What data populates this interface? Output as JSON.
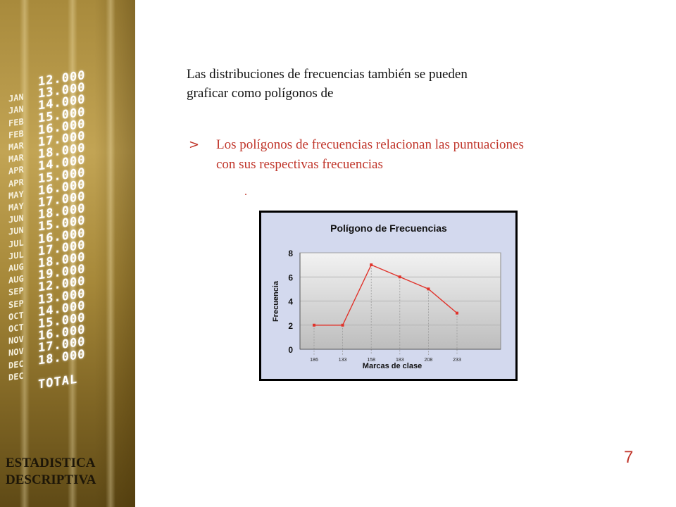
{
  "slide": {
    "intro_lines": [
      "Las distribuciones de frecuencias también se pueden",
      "graficar como polígonos de"
    ],
    "bullet_marker": ">",
    "bullet_lines": [
      "Los polígonos de frecuencias relacionan las puntuaciones",
      "con sus respectivas frecuencias"
    ],
    "stray_dot": ".",
    "page_number": "7",
    "footer_lines": [
      "ESTADISTICA",
      "DESCRIPTIVA"
    ]
  },
  "side_panel": {
    "ticker": [
      {
        "month": "",
        "value": "12.000"
      },
      {
        "month": "JAN",
        "value": "13.000"
      },
      {
        "month": "JAN",
        "value": "14.000"
      },
      {
        "month": "FEB",
        "value": "15.000"
      },
      {
        "month": "FEB",
        "value": "16.000"
      },
      {
        "month": "MAR",
        "value": "17.000"
      },
      {
        "month": "MAR",
        "value": "18.000"
      },
      {
        "month": "APR",
        "value": "14.000"
      },
      {
        "month": "APR",
        "value": "15.000"
      },
      {
        "month": "MAY",
        "value": "16.000"
      },
      {
        "month": "MAY",
        "value": "17.000"
      },
      {
        "month": "JUN",
        "value": "18.000"
      },
      {
        "month": "JUN",
        "value": "15.000"
      },
      {
        "month": "JUL",
        "value": "16.000"
      },
      {
        "month": "JUL",
        "value": "17.000"
      },
      {
        "month": "AUG",
        "value": "18.000"
      },
      {
        "month": "AUG",
        "value": "19.000"
      },
      {
        "month": "SEP",
        "value": "12.000"
      },
      {
        "month": "SEP",
        "value": "13.000"
      },
      {
        "month": "OCT",
        "value": "14.000"
      },
      {
        "month": "OCT",
        "value": "15.000"
      },
      {
        "month": "NOV",
        "value": "16.000"
      },
      {
        "month": "NOV",
        "value": "17.000"
      },
      {
        "month": "DEC",
        "value": "18.000"
      },
      {
        "month": "DEC",
        "value": ""
      },
      {
        "month": "",
        "value": "TOTAL"
      }
    ]
  },
  "chart_data": {
    "type": "line",
    "title": "Polígono de Frecuencias",
    "xlabel": "Marcas de clase",
    "ylabel": "Frecuencia",
    "categories": [
      "186",
      "133",
      "158",
      "183",
      "208",
      "233"
    ],
    "series": [
      {
        "values": [
          2,
          2,
          7,
          6,
          5,
          3
        ]
      }
    ],
    "ylim": [
      0,
      8
    ],
    "yticks": [
      0,
      2,
      4,
      6,
      8
    ],
    "grid": true,
    "legend": "none",
    "colors": {
      "line": "#e0332b",
      "plot_background_top": "#f2f2f2",
      "plot_background_bottom": "#bdbdbd",
      "frame_background": "#d3d9ee",
      "drop_lines": "#9a9a9a"
    }
  }
}
